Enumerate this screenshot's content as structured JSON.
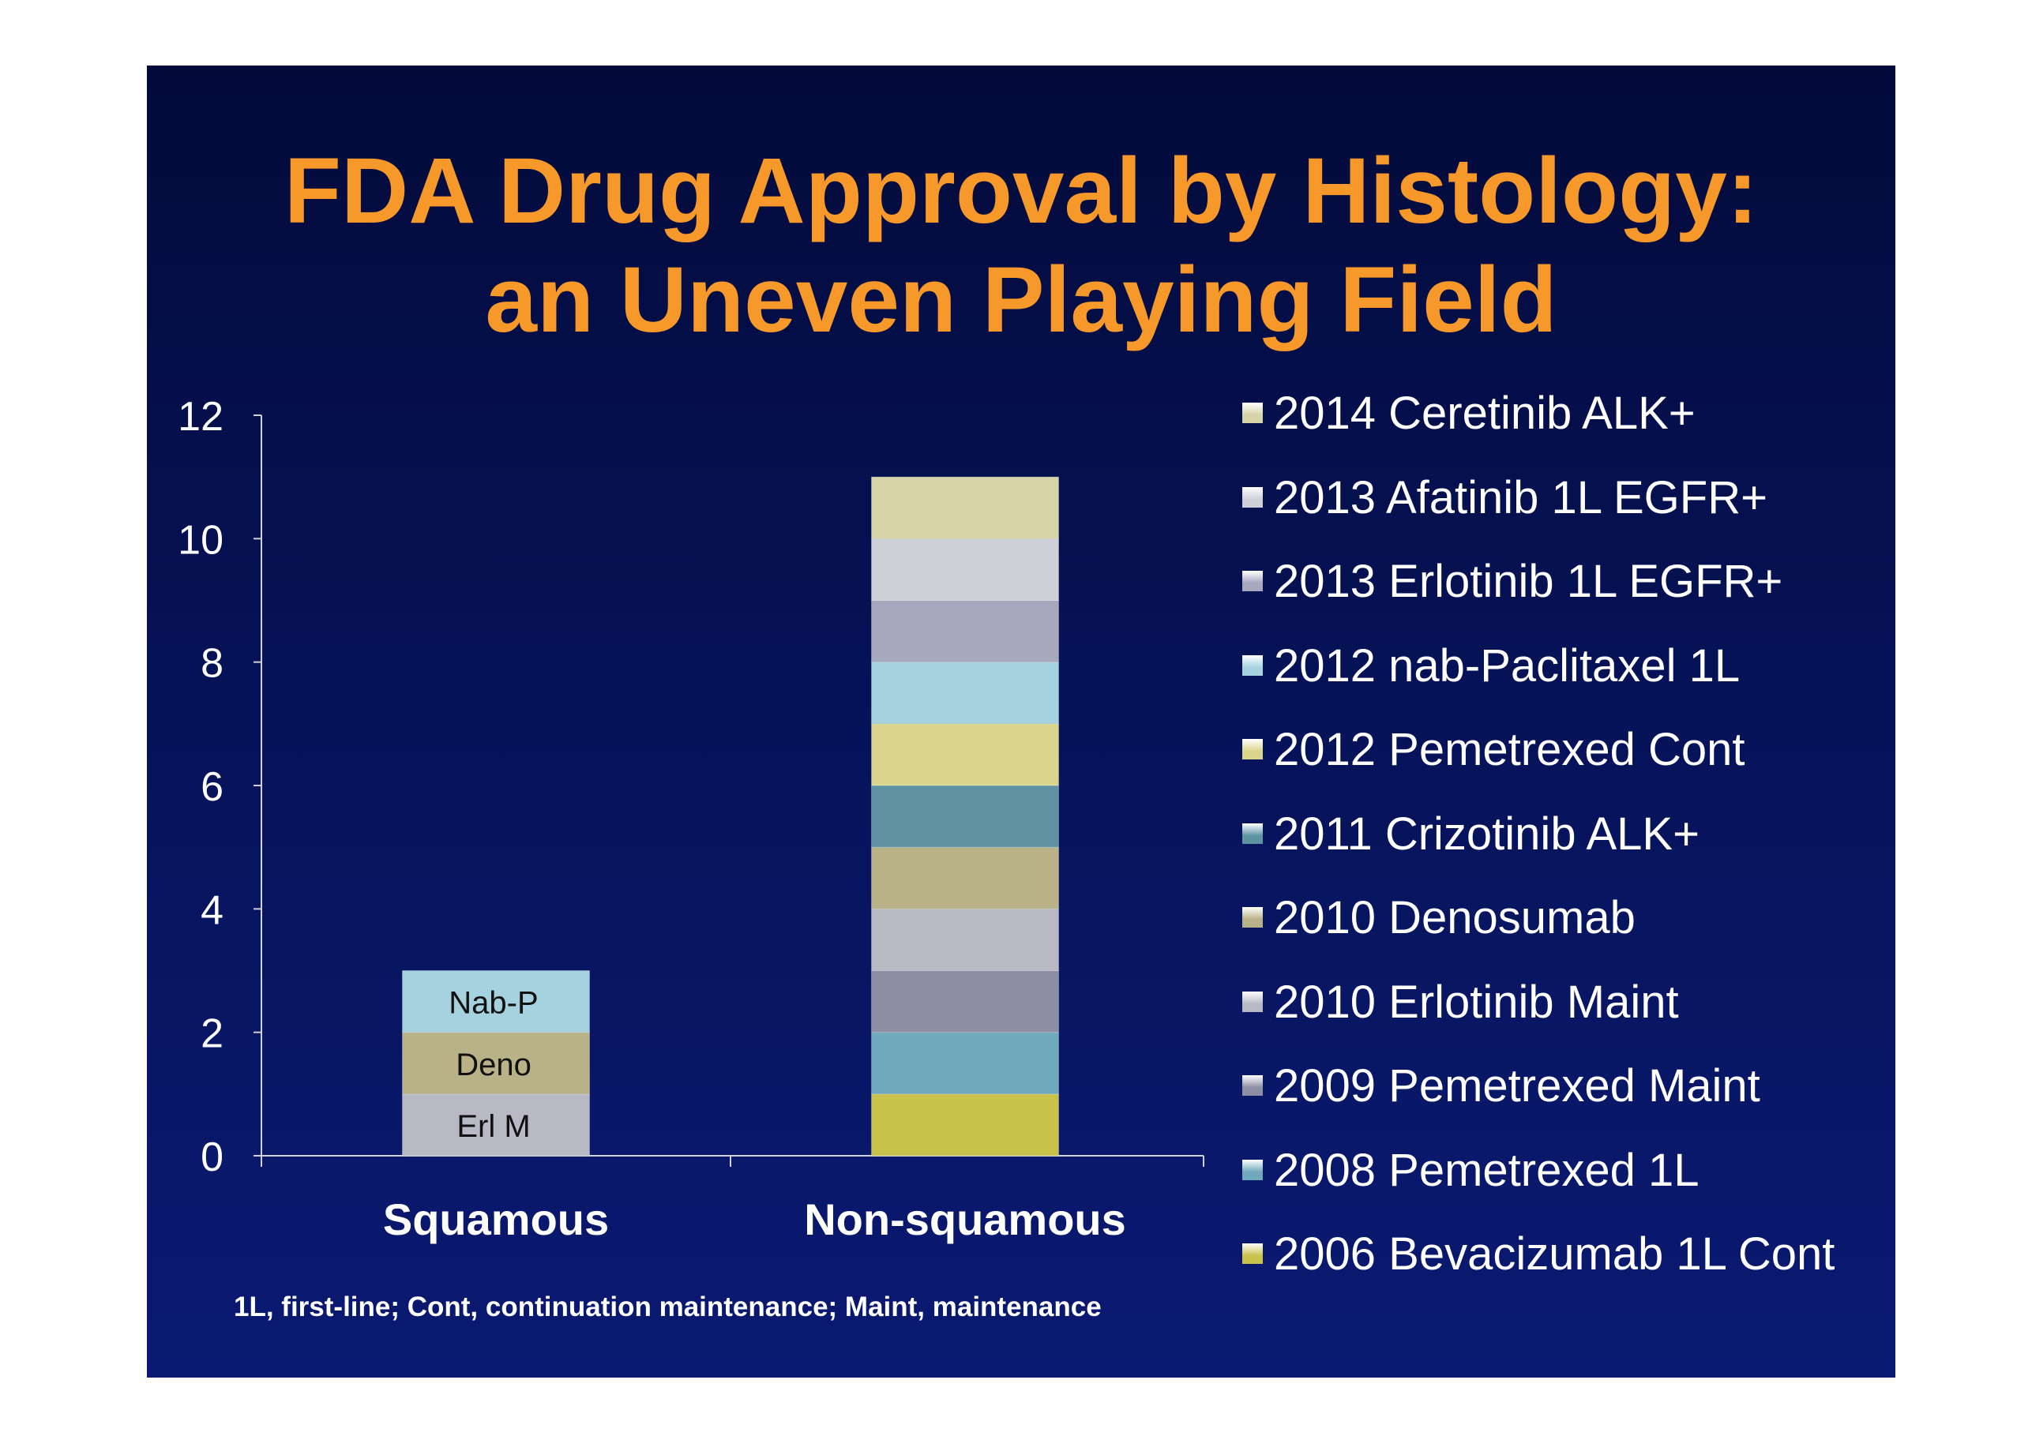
{
  "title": {
    "line1": "FDA Drug Approval by Histology:",
    "line2": "an Uneven Playing Field"
  },
  "footnote": "1L, first-line; Cont, continuation maintenance; Maint, maintenance",
  "chart_data": {
    "type": "bar",
    "stacked": true,
    "categories": [
      "Squamous",
      "Non-squamous"
    ],
    "ylim": [
      0,
      12
    ],
    "yticks": [
      "0",
      "2",
      "4",
      "6",
      "8",
      "10",
      "12"
    ],
    "grid": false,
    "legend_position": "right",
    "series": [
      {
        "name": "2006 Bevacizumab 1L Cont",
        "values": [
          0,
          1
        ],
        "color": "#c9c24a"
      },
      {
        "name": "2008 Pemetrexed 1L",
        "values": [
          0,
          1
        ],
        "color": "#6fa9bb"
      },
      {
        "name": "2009 Pemetrexed Maint",
        "values": [
          0,
          1
        ],
        "color": "#8e8ea4"
      },
      {
        "name": "2010 Erlotinib Maint",
        "values": [
          1,
          1
        ],
        "color": "#b9b9c6"
      },
      {
        "name": "2010 Denosumab",
        "values": [
          1,
          1
        ],
        "color": "#b9b288"
      },
      {
        "name": "2011 Crizotinib ALK+",
        "values": [
          0,
          1
        ],
        "color": "#5f93a2"
      },
      {
        "name": "2012 Pemetrexed Cont",
        "values": [
          0,
          1
        ],
        "color": "#d9d58c"
      },
      {
        "name": "2012 nab-Paclitaxel 1L",
        "values": [
          1,
          1
        ],
        "color": "#a6d2df"
      },
      {
        "name": "2013 Erlotinib 1L EGFR+",
        "values": [
          0,
          1
        ],
        "color": "#a7a7be"
      },
      {
        "name": "2013 Afatinib 1L EGFR+",
        "values": [
          0,
          1
        ],
        "color": "#cfcfd8"
      },
      {
        "name": "2014 Ceretinib ALK+",
        "values": [
          0,
          1
        ],
        "color": "#d6d3a8"
      }
    ],
    "bar_labels": [
      {
        "category": "Squamous",
        "series": "2010 Erlotinib Maint",
        "text": "Erl M"
      },
      {
        "category": "Squamous",
        "series": "2010 Denosumab",
        "text": "Deno"
      },
      {
        "category": "Squamous",
        "series": "2012 nab-Paclitaxel 1L",
        "text": "Nab-P"
      }
    ]
  }
}
